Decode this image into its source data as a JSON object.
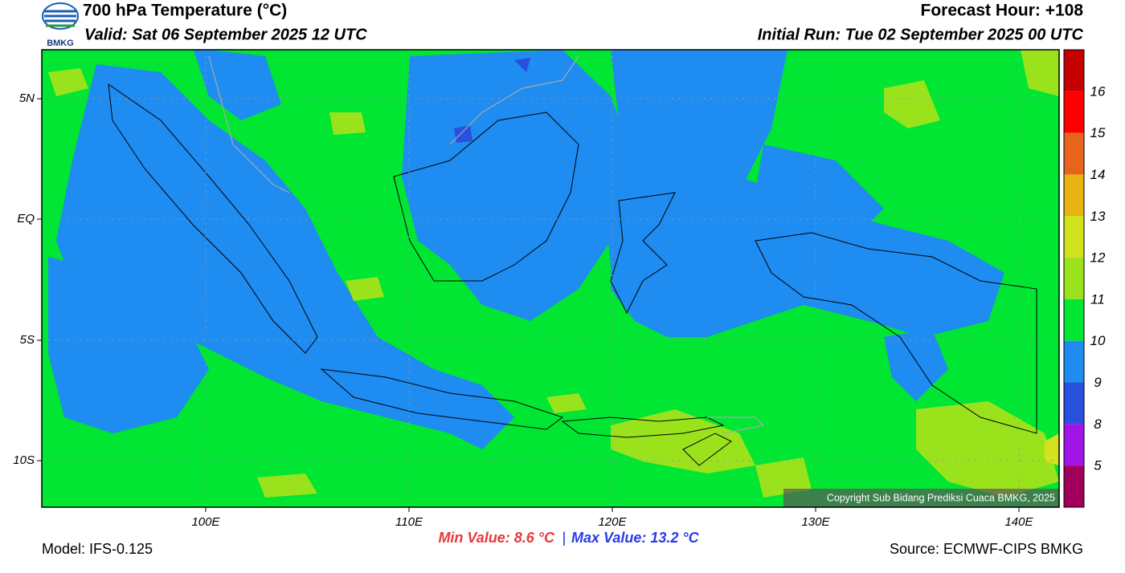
{
  "header": {
    "title": "700 hPa Temperature (°C)",
    "valid": "Valid: Sat 06 September 2025 12 UTC",
    "forecast_hour": "Forecast Hour: +108",
    "initial_run": "Initial Run: Tue 02 September 2025 00 UTC",
    "logo_text": "BMKG"
  },
  "map": {
    "lat_labels": [
      "5N",
      "EQ",
      "5S",
      "10S"
    ],
    "lon_labels": [
      "100E",
      "110E",
      "120E",
      "130E",
      "140E"
    ],
    "copyright": "Copyright Sub Bidang Prediksi Cuaca BMKG, 2025"
  },
  "colorbar": {
    "colors": [
      "#c40000",
      "#ff0000",
      "#e8641c",
      "#e8b414",
      "#d2e21c",
      "#9ae31c",
      "#00e632",
      "#1e8cf0",
      "#2850dc",
      "#a014e6",
      "#a0005a"
    ],
    "labels": [
      16,
      15,
      14,
      13,
      12,
      11,
      10,
      9,
      8,
      5
    ]
  },
  "footer": {
    "model": "Model: IFS-0.125",
    "min_value": "Min Value: 8.6 °C",
    "separator": "|",
    "max_value": "Max Value: 13.2 °C",
    "source": "Source: ECMWF-CIPS BMKG"
  }
}
